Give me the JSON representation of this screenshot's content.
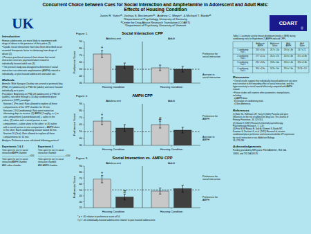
{
  "chart_data": [
    {
      "type": "bar",
      "figure_label": "Figure 1.",
      "title": "Social Interaction CPP",
      "ylabel": "Preference Score",
      "xlabel": "Housing Condition",
      "categories": [
        "Adolescent",
        "Adult"
      ],
      "series": [
        {
          "color": "#c8c8c8",
          "values": [
            72,
            52
          ],
          "errors": [
            5,
            4
          ]
        },
        {
          "color": "#404040",
          "values": [
            55,
            50
          ],
          "errors": [
            4,
            4
          ]
        }
      ],
      "reference_line": 50,
      "side_labels": [
        "Preference for\nsocial interaction",
        "Aversion to\nsocial interaction"
      ],
      "markers": [
        {
          "text": "*",
          "y": 78,
          "category": 0,
          "series": 0
        }
      ],
      "ylim": [
        30,
        90
      ],
      "yticks": [
        30,
        40,
        50,
        60,
        70,
        80,
        90
      ]
    },
    {
      "type": "bar",
      "figure_label": "Figure 2.",
      "title": "AMPH CPP",
      "ylabel": "Preference Score",
      "xlabel": "Housing Condition",
      "categories": [
        "Adolescent",
        "Adult"
      ],
      "series": [
        {
          "color": "#c8c8c8",
          "values": [
            65,
            60
          ],
          "errors": [
            5,
            5
          ]
        },
        {
          "color": "#404040",
          "values": [
            55,
            52
          ],
          "errors": [
            5,
            4
          ]
        }
      ],
      "reference_line": 50,
      "side_labels": [
        "Preference for\nAMPH",
        "Aversion to\nAMPH"
      ],
      "markers": [
        {
          "text": "*",
          "y": 71,
          "category": 0,
          "series": 0
        },
        {
          "text": "#",
          "y": 66,
          "category": 1,
          "series": 0
        }
      ],
      "ylim": [
        30,
        90
      ],
      "yticks": [
        30,
        40,
        50,
        60,
        70,
        80,
        90
      ]
    },
    {
      "type": "bar",
      "figure_label": "Figure 3.",
      "title": "Social Interaction vs. AMPH CPP",
      "ylabel": "Preference Score",
      "xlabel": "Housing Condition",
      "categories": [
        "Adolescent",
        "Adult"
      ],
      "series": [
        {
          "color": "#c8c8c8",
          "values": [
            68,
            48
          ],
          "errors": [
            6,
            5
          ]
        },
        {
          "color": "#404040",
          "values": [
            38,
            52
          ],
          "errors": [
            5,
            6
          ]
        }
      ],
      "reference_line": 50,
      "side_labels": [
        "Preference for\nsocial interaction",
        "Preference for\nAMPH"
      ],
      "markers": [
        {
          "text": "*",
          "y": 75,
          "category": 0,
          "series": 0
        },
        {
          "text": "#",
          "y": 44,
          "category": 0,
          "series": 1
        }
      ],
      "ylim": [
        20,
        90
      ],
      "yticks": [
        20,
        30,
        40,
        50,
        60,
        70,
        80,
        90
      ]
    }
  ],
  "page": {
    "background_color": "#b3e5f0",
    "title": [
      "Concurrent Choice between Cues for Social Interaction and Amphetamine in Adolescent and Adult Rats:",
      "Effects of Housing Condition"
    ],
    "authors": "Justin R. Yatesᵃʰ, Joshua S. Beckmannᵃʰ,  Andrew C. Meyerᶜ, & Michael T. Bardoᵃʰ",
    "affiliations": [
      "ᵃDepartment of Psychology, University of Kentucky",
      "ᵇCenter for Drug Abuse Research Translation (COART)",
      "ᶜDepartment of Psychiatry, University of Vermont"
    ],
    "logos": [
      {
        "text": "UK",
        "color": "#003087"
      },
      {
        "text": "CDART",
        "symbol": "®",
        "background": "#1a1a8c"
      }
    ],
    "left_sections": [
      {
        "title": "Introduction",
        "text": "Human adolescents are more likely to experiment with\ndrugs of abuse in the presence of their peers (1).\n• Dyadic social interactions have also been described as an\nessential therapeutic factor in abstaining from drugs of\nabuse (2).\n• Previous preclinical research has shown that social\ninteraction reverses psychostimulant reward in\nindividually-housed adult rats (3).\n• The present study was designed to determine if social\ninteraction can attenuate amphetamine (AMPH) reward in\nindividually- or pair-housed adolescent and adult rats."
      },
      {
        "title": "Methods",
        "text": "Animals: Male Sprague-Dawley rats arrived at postnatal day\n(PND) 21 (adolescent) or PND 60 (adults) and were housed\nindividually or in pairs.\nProcedure: Beginning on PND 28 (adolescent) or PND 67\n(adults), rats went through a 10-day conditioned place\npreference (CPP) paradigm.\n  Session 1 (Pre-test): Rats allowed to explore all three\n  compartments of the CPP chamber for 15 min.\n  Sessions 2-9 (Conditioning): Rats were trained on\n  alternating days to receive: (1) AMPH (1 mg/kg, s.c.) in\n  one compartment (counterbalanced) + saline in the\n  other; (2) saline with a social partner in one\n  compartment + saline alone in the other; or (3) saline\n  with a social partner in one compartment + AMPH alone\n  in the other. Each conditioning session lasted 30 min.\n  Session 10 (Test): Rats allowed to explore all three\n  compartments for 15 min.\nAnalysis: Preference score calculated following protocol:"
      }
    ],
    "formulas": [
      {
        "title": "Experiments 1 & 2",
        "text": "Time spent (in sec) in social\ninteraction/AMPH chamber\n————————————— x100\nTime spent (in sec) in social\ninteraction/AMPH chamber\nAND saline chamber"
      },
      {
        "title": "Experiment 3",
        "text": "Time spent (in sec) in social\ninteraction chamber\n————————————— x100\nTime spent (in sec) in social\ninteraction chamber\nAND AMPH chamber"
      }
    ],
    "table": {
      "caption": "Table 1. Locomotor activity (mean photobeam breaks ± SEM) during\nconditioning trials for Experiment 2 (AMPH-induced CPP).",
      "header": [
        null,
        "Adolescent\nAMPH",
        "Adolescent\nSaline",
        "Adult\nAMPH",
        "Adult\nSaline"
      ],
      "rows": [
        [
          "1 conditioning\nTrial 1",
          "26.8 ± 3.0a",
          "26.7 ± 1.4a",
          "29.6 ± 1.6b",
          "26.7 ± 2.2"
        ],
        [
          "2 conditioning\nTrial 2",
          "27.7 ± 2.1a",
          "26.2 ± 1.7a",
          "24.9 ± 1.6b",
          "19.1 ± 2.6b"
        ],
        [
          "3 conditioning\nTrial 3",
          "29.2 ± 3.2a",
          "19.8 ± 1.4a",
          "23.6 ± 1.4b",
          "18.0 ± 1.3b"
        ],
        [
          "4 conditioning\nTrial 4",
          "36.0 ± 2.9a",
          "24.3 ± 1.4a",
          "23.6 ± 1.4b",
          "19.70 ± 1.0"
        ]
      ]
    },
    "right_sections": [
      {
        "title": "Discussion",
        "text": "• Overall results suggest that individually-housed adolescent rats were\nmost sensitive to the rewarding effect of social interaction, and this\nhypersensitivity to social reward effectively competed with AMPH\nreward.\n• Future studies will examine other parameters, manipulations,\nincluding:\n  a) AMPH dose\n  b) Duration of conditioning trials\n  c) Sex differences"
      },
      {
        "title": "References",
        "text": "(1) Bahr SL, Hoffmann JH, Yang X (2005) Parental and peer\ninfluences on the risk of adolescent drug use. The Journal of\nPrimary Prevention. 26, 529-551.\n(2) Grawe K (1997) Research-informed psychotherapy.\nPsychotherapy Research. 7, 1-19.\n(3) Fritz M, El Rawas R, Salti A, Klement S, Bardo MT,\nKummer G, Dechant G, et al. (2011) Reversal of cocaine-\nconditioned place preference and mesocorticolimbic ZF expression\nby social interaction in rats. Addiction Biology.\n16, 273-284."
      },
      {
        "title": "Acknowledgements",
        "text": "Funding provided by NIH grants P50 DA005312 , R01 DA-\n13084, and T32 DA016176."
      }
    ],
    "footnote": "* p < .05 relative to preference score of 50\n# p < .05 individually-housed adolescents relative to pair-housed adolescents"
  }
}
